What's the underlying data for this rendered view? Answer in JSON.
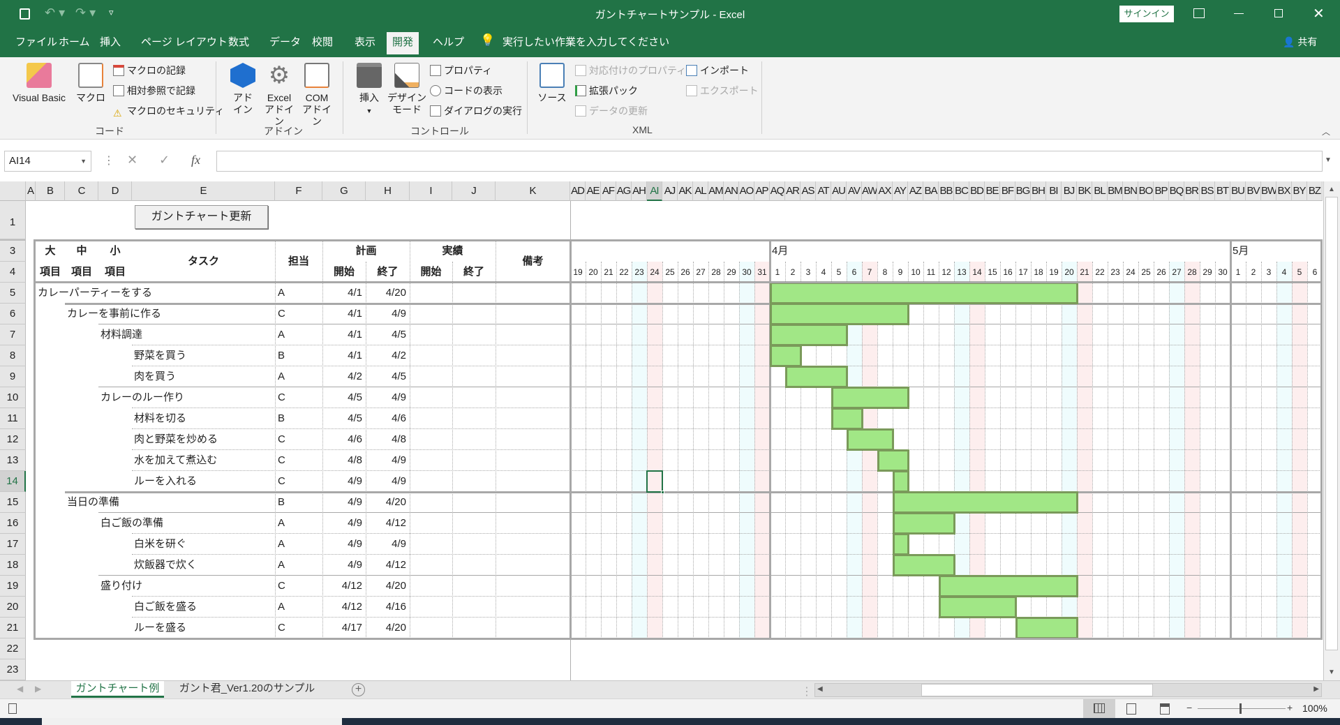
{
  "title_bar": {
    "title": "ガントチャートサンプル  -  Excel",
    "signin_label": "サインイン",
    "icons": [
      "save-icon",
      "undo-icon",
      "redo-icon",
      "customize-icon",
      "ribbon-display-icon",
      "minimize-icon",
      "restore-icon",
      "close-icon"
    ]
  },
  "menu": {
    "tabs": [
      "ファイル",
      "ホーム",
      "挿入",
      "ページ レイアウト",
      "数式",
      "データ",
      "校閲",
      "表示",
      "開発",
      "ヘルプ"
    ],
    "selected": "開発",
    "tell_me": "実行したい作業を入力してください",
    "share": "共有"
  },
  "ribbon": {
    "code": {
      "label": "コード",
      "visual_basic": "Visual Basic",
      "macro": "マクロ",
      "record_macro": "マクロの記録",
      "relative_ref": "相対参照で記録",
      "macro_security": "マクロのセキュリティ"
    },
    "addins": {
      "label": "アドイン",
      "addin1": "アド",
      "addin2": "イン",
      "excel1": "Excel",
      "excel2": "アドイン",
      "com1": "COM",
      "com2": "アドイン"
    },
    "controls": {
      "label": "コントロール",
      "insert": "挿入",
      "design1": "デザイン",
      "design2": "モード",
      "properties": "プロパティ",
      "view_code": "コードの表示",
      "run_dialog": "ダイアログの実行"
    },
    "xml": {
      "label": "XML",
      "source": "ソース",
      "map_properties": "対応付けのプロパティ",
      "expansion_packs": "拡張パック",
      "refresh_data": "データの更新",
      "import": "インポート",
      "export": "エクスポート"
    }
  },
  "formula_bar": {
    "name_box": "AI14",
    "formula": ""
  },
  "sheet": {
    "columns": [
      "A",
      "B",
      "C",
      "D",
      "E",
      "F",
      "G",
      "H",
      "I",
      "J",
      "K",
      "AD",
      "AE",
      "AF",
      "AG",
      "AH",
      "AI",
      "AJ",
      "AK",
      "AL",
      "AM",
      "AN",
      "AO",
      "AP",
      "AQ",
      "AR",
      "AS",
      "AT",
      "AU",
      "AV",
      "AW",
      "AX",
      "AY",
      "AZ",
      "BA",
      "BB",
      "BC",
      "BD",
      "BE",
      "BF",
      "BG",
      "BH",
      "BI",
      "BJ",
      "BK",
      "BL",
      "BM",
      "BN",
      "BO",
      "BP",
      "BQ",
      "BR",
      "BS",
      "BT",
      "BU",
      "BV",
      "BW",
      "BX",
      "BY",
      "BZ"
    ],
    "selected_column": "AI",
    "rows": [
      "1",
      "3",
      "4",
      "5",
      "6",
      "7",
      "8",
      "9",
      "10",
      "11",
      "12",
      "13",
      "14",
      "15",
      "16",
      "17",
      "18",
      "19",
      "20",
      "21",
      "22",
      "23"
    ],
    "selected_row": "14",
    "update_button": "ガントチャート更新",
    "headers": {
      "dai": "大",
      "chu": "中",
      "sho": "小",
      "item": "項目",
      "task": "タスク",
      "owner": "担当",
      "plan": "計画",
      "actual": "実績",
      "start": "開始",
      "end": "終了",
      "note": "備考"
    },
    "months": [
      {
        "label": "4月",
        "month": 4
      },
      {
        "label": "5月",
        "month": 5
      }
    ],
    "days": [
      "19",
      "20",
      "21",
      "22",
      "23",
      "24",
      "25",
      "26",
      "27",
      "28",
      "29",
      "30",
      "31",
      "1",
      "2",
      "3",
      "4",
      "5",
      "6",
      "7",
      "8",
      "9",
      "10",
      "11",
      "12",
      "13",
      "14",
      "15",
      "16",
      "17",
      "18",
      "19",
      "20",
      "21",
      "22",
      "23",
      "24",
      "25",
      "26",
      "27",
      "28",
      "29",
      "30",
      "1",
      "2",
      "3",
      "4",
      "5",
      "6"
    ],
    "tasks": [
      {
        "level": 1,
        "name": "カレーパーティーをする",
        "owner": "A",
        "start": "4/1",
        "end": "4/20"
      },
      {
        "level": 2,
        "name": "カレーを事前に作る",
        "owner": "C",
        "start": "4/1",
        "end": "4/9"
      },
      {
        "level": 3,
        "name": "材料調達",
        "owner": "A",
        "start": "4/1",
        "end": "4/5"
      },
      {
        "level": 4,
        "name": "野菜を買う",
        "owner": "B",
        "start": "4/1",
        "end": "4/2"
      },
      {
        "level": 4,
        "name": "肉を買う",
        "owner": "A",
        "start": "4/2",
        "end": "4/5"
      },
      {
        "level": 3,
        "name": "カレーのルー作り",
        "owner": "C",
        "start": "4/5",
        "end": "4/9"
      },
      {
        "level": 4,
        "name": "材料を切る",
        "owner": "B",
        "start": "4/5",
        "end": "4/6"
      },
      {
        "level": 4,
        "name": "肉と野菜を炒める",
        "owner": "C",
        "start": "4/6",
        "end": "4/8"
      },
      {
        "level": 4,
        "name": "水を加えて煮込む",
        "owner": "C",
        "start": "4/8",
        "end": "4/9"
      },
      {
        "level": 4,
        "name": "ルーを入れる",
        "owner": "C",
        "start": "4/9",
        "end": "4/9"
      },
      {
        "level": 2,
        "name": "当日の準備",
        "owner": "B",
        "start": "4/9",
        "end": "4/20"
      },
      {
        "level": 3,
        "name": "白ご飯の準備",
        "owner": "A",
        "start": "4/9",
        "end": "4/12"
      },
      {
        "level": 4,
        "name": "白米を研ぐ",
        "owner": "A",
        "start": "4/9",
        "end": "4/9"
      },
      {
        "level": 4,
        "name": "炊飯器で炊く",
        "owner": "A",
        "start": "4/9",
        "end": "4/12"
      },
      {
        "level": 3,
        "name": "盛り付け",
        "owner": "C",
        "start": "4/12",
        "end": "4/20"
      },
      {
        "level": 4,
        "name": "白ご飯を盛る",
        "owner": "A",
        "start": "4/12",
        "end": "4/16"
      },
      {
        "level": 4,
        "name": "ルーを盛る",
        "owner": "C",
        "start": "4/17",
        "end": "4/20"
      }
    ],
    "colors": {
      "bar_fill": "#a1e786",
      "bar_border": "#7a9a5a",
      "saturday": "#effcfd",
      "sunday": "#fdeeee",
      "accent": "#217346"
    }
  },
  "sheet_tabs": {
    "tabs": [
      "ガントチャート例",
      "ガント君_Ver1.20のサンプル"
    ],
    "active": 0,
    "add_icon": "plus-circle-icon"
  },
  "status_bar": {
    "zoom": "100%"
  }
}
